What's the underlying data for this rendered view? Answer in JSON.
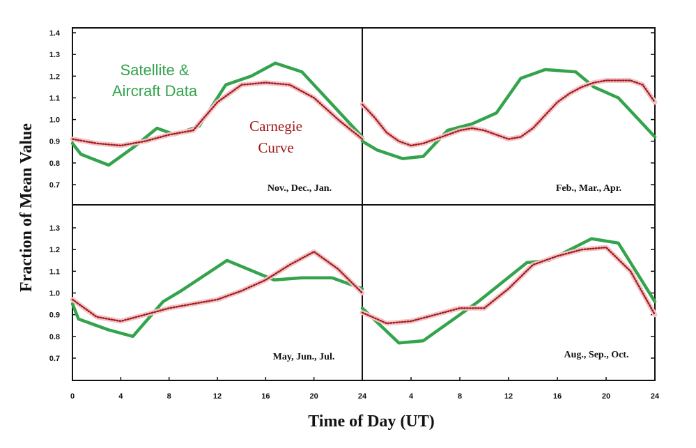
{
  "colors": {
    "satellite": "#33a34c",
    "carnegie": "#a01616",
    "carnegie_halo": "#f2c4c8",
    "axes": "#111111"
  },
  "axes": {
    "xlabel": "Time of Day (UT)",
    "ylabel": "Fraction of Mean Value"
  },
  "legend": {
    "satellite_line1": "Satellite &",
    "satellite_line2": "Aircraft Data",
    "carnegie_line1": "Carnegie",
    "carnegie_line2": "Curve"
  },
  "chart_data": [
    {
      "type": "line",
      "panel_label": "Nov., Dec., Jan.",
      "xlabel": "",
      "ylabel": "",
      "xlim": [
        0,
        24
      ],
      "ylim": [
        0.6,
        1.4
      ],
      "x_ticks": [],
      "y_ticks": [
        0.7,
        0.8,
        0.9,
        1.0,
        1.1,
        1.2,
        1.3,
        1.4
      ],
      "series": [
        {
          "name": "Satellite & Aircraft Data",
          "x": [
            0,
            0.7,
            3,
            5,
            7,
            8.5,
            10.5,
            12.7,
            14.8,
            16.8,
            19,
            24
          ],
          "y": [
            0.89,
            0.84,
            0.79,
            0.87,
            0.96,
            0.93,
            0.97,
            1.16,
            1.2,
            1.26,
            1.22,
            0.92
          ]
        },
        {
          "name": "Carnegie Curve",
          "x": [
            0,
            2,
            4,
            6,
            8,
            10,
            12,
            14,
            16,
            18,
            20,
            22,
            24
          ],
          "y": [
            0.91,
            0.89,
            0.88,
            0.9,
            0.93,
            0.95,
            1.08,
            1.16,
            1.17,
            1.16,
            1.1,
            1.0,
            0.91
          ]
        }
      ]
    },
    {
      "type": "line",
      "panel_label": "Feb., Mar., Apr.",
      "xlabel": "",
      "ylabel": "",
      "xlim": [
        0,
        24
      ],
      "ylim": [
        0.6,
        1.4
      ],
      "x_ticks": [],
      "y_ticks": [
        0.7,
        0.8,
        0.9,
        1.0,
        1.1,
        1.2,
        1.3,
        1.4
      ],
      "series": [
        {
          "name": "Satellite & Aircraft Data",
          "x": [
            0,
            1.2,
            3.3,
            5,
            7,
            9,
            11,
            13,
            15,
            17.5,
            19,
            21,
            24
          ],
          "y": [
            0.9,
            0.86,
            0.82,
            0.83,
            0.95,
            0.98,
            1.03,
            1.19,
            1.23,
            1.22,
            1.15,
            1.1,
            0.92
          ]
        },
        {
          "name": "Carnegie Curve",
          "x": [
            0,
            1,
            2,
            3,
            4,
            5,
            6,
            7,
            8,
            9,
            10,
            11,
            12,
            13,
            14,
            15,
            16,
            17,
            18,
            19,
            20,
            21,
            22,
            23,
            24
          ],
          "y": [
            1.07,
            1.01,
            0.94,
            0.9,
            0.88,
            0.89,
            0.91,
            0.93,
            0.95,
            0.96,
            0.95,
            0.93,
            0.91,
            0.92,
            0.96,
            1.02,
            1.08,
            1.12,
            1.15,
            1.17,
            1.18,
            1.18,
            1.18,
            1.16,
            1.08
          ]
        }
      ]
    },
    {
      "type": "line",
      "panel_label": "May, Jun., Jul.",
      "xlabel": "",
      "ylabel": "",
      "xlim": [
        0,
        24
      ],
      "ylim": [
        0.6,
        1.4
      ],
      "x_ticks": [
        0,
        4,
        8,
        12,
        16,
        20,
        24
      ],
      "y_ticks": [
        0.7,
        0.8,
        0.9,
        1.0,
        1.1,
        1.2,
        1.3
      ],
      "series": [
        {
          "name": "Satellite & Aircraft Data",
          "x": [
            0,
            0.5,
            3,
            5,
            7.5,
            9,
            12.8,
            16.7,
            19,
            21.5,
            24
          ],
          "y": [
            0.95,
            0.88,
            0.83,
            0.8,
            0.96,
            1.01,
            1.15,
            1.06,
            1.07,
            1.07,
            1.02
          ]
        },
        {
          "name": "Carnegie Curve",
          "x": [
            0,
            2,
            4,
            6,
            8,
            10,
            12,
            14,
            16,
            18,
            20,
            22,
            24
          ],
          "y": [
            0.97,
            0.89,
            0.87,
            0.9,
            0.93,
            0.95,
            0.97,
            1.01,
            1.06,
            1.13,
            1.19,
            1.11,
            1.0
          ]
        }
      ]
    },
    {
      "type": "line",
      "panel_label": "Aug., Sep., Oct.",
      "xlabel": "",
      "ylabel": "",
      "xlim": [
        0,
        24
      ],
      "ylim": [
        0.6,
        1.4
      ],
      "x_ticks": [
        4,
        8,
        12,
        16,
        20,
        24
      ],
      "y_ticks": [
        0.7,
        0.8,
        0.9,
        1.0,
        1.1,
        1.2,
        1.3
      ],
      "series": [
        {
          "name": "Satellite & Aircraft Data",
          "x": [
            0,
            1.5,
            3,
            5,
            7.5,
            9.5,
            13.5,
            15.3,
            18.8,
            21,
            24
          ],
          "y": [
            0.93,
            0.85,
            0.77,
            0.78,
            0.88,
            0.96,
            1.14,
            1.15,
            1.25,
            1.23,
            0.96
          ]
        },
        {
          "name": "Carnegie Curve",
          "x": [
            0,
            2,
            4,
            6,
            8,
            10,
            12,
            14,
            16,
            18,
            20,
            22,
            24
          ],
          "y": [
            0.91,
            0.86,
            0.87,
            0.9,
            0.93,
            0.93,
            1.02,
            1.13,
            1.17,
            1.2,
            1.21,
            1.1,
            0.9
          ]
        }
      ]
    }
  ]
}
